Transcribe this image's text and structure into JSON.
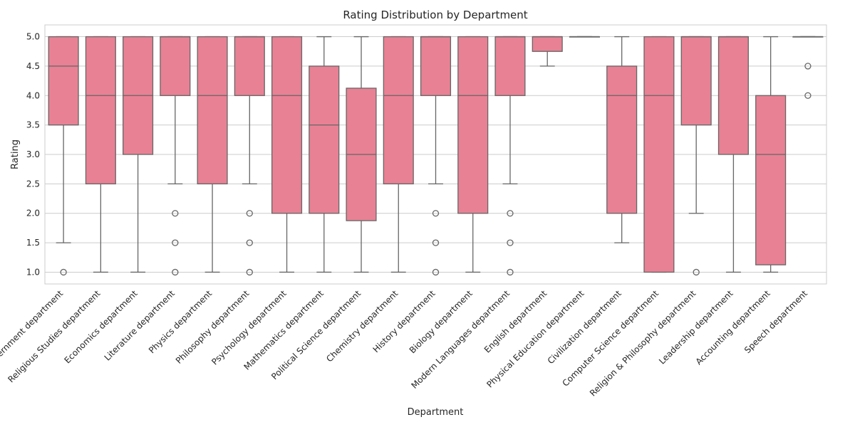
{
  "chart_data": {
    "type": "box",
    "title": "Rating Distribution by Department",
    "xlabel": "Department",
    "ylabel": "Rating",
    "ylim": [
      0.8,
      5.2
    ],
    "yticks": [
      1.0,
      1.5,
      2.0,
      2.5,
      3.0,
      3.5,
      4.0,
      4.5,
      5.0
    ],
    "ytick_labels": [
      "1.0",
      "1.5",
      "2.0",
      "2.5",
      "3.0",
      "3.5",
      "4.0",
      "4.5",
      "5.0"
    ],
    "grid": true,
    "box_color": "#e88194",
    "line_color": "#666666",
    "categories": [
      {
        "name": "Government department",
        "q1": 3.5,
        "median": 4.5,
        "q3": 5.0,
        "whisker_low": 1.5,
        "whisker_high": 5.0,
        "outliers": [
          1.0
        ]
      },
      {
        "name": "Religious Studies department",
        "q1": 2.5,
        "median": 4.0,
        "q3": 5.0,
        "whisker_low": 1.0,
        "whisker_high": 5.0,
        "outliers": []
      },
      {
        "name": "Economics department",
        "q1": 3.0,
        "median": 4.0,
        "q3": 5.0,
        "whisker_low": 1.0,
        "whisker_high": 5.0,
        "outliers": []
      },
      {
        "name": "Literature department",
        "q1": 4.0,
        "median": 5.0,
        "q3": 5.0,
        "whisker_low": 2.5,
        "whisker_high": 5.0,
        "outliers": [
          2.0,
          1.5,
          1.0
        ]
      },
      {
        "name": "Physics department",
        "q1": 2.5,
        "median": 4.0,
        "q3": 5.0,
        "whisker_low": 1.0,
        "whisker_high": 5.0,
        "outliers": []
      },
      {
        "name": "Philosophy department",
        "q1": 4.0,
        "median": 5.0,
        "q3": 5.0,
        "whisker_low": 2.5,
        "whisker_high": 5.0,
        "outliers": [
          2.0,
          1.5,
          1.0
        ]
      },
      {
        "name": "Psychology department",
        "q1": 2.0,
        "median": 4.0,
        "q3": 5.0,
        "whisker_low": 1.0,
        "whisker_high": 5.0,
        "outliers": []
      },
      {
        "name": "Mathematics department",
        "q1": 2.0,
        "median": 3.5,
        "q3": 4.5,
        "whisker_low": 1.0,
        "whisker_high": 5.0,
        "outliers": []
      },
      {
        "name": "Political Science department",
        "q1": 1.875,
        "median": 3.0,
        "q3": 4.125,
        "whisker_low": 1.0,
        "whisker_high": 5.0,
        "outliers": []
      },
      {
        "name": "Chemistry department",
        "q1": 2.5,
        "median": 4.0,
        "q3": 5.0,
        "whisker_low": 1.0,
        "whisker_high": 5.0,
        "outliers": []
      },
      {
        "name": "History department",
        "q1": 4.0,
        "median": 5.0,
        "q3": 5.0,
        "whisker_low": 2.5,
        "whisker_high": 5.0,
        "outliers": [
          2.0,
          1.5,
          1.0
        ]
      },
      {
        "name": "Biology department",
        "q1": 2.0,
        "median": 4.0,
        "q3": 5.0,
        "whisker_low": 1.0,
        "whisker_high": 5.0,
        "outliers": []
      },
      {
        "name": "Modern Languages department",
        "q1": 4.0,
        "median": 5.0,
        "q3": 5.0,
        "whisker_low": 2.5,
        "whisker_high": 5.0,
        "outliers": [
          2.0,
          1.5,
          1.0
        ]
      },
      {
        "name": "English department",
        "q1": 4.75,
        "median": 5.0,
        "q3": 5.0,
        "whisker_low": 4.5,
        "whisker_high": 5.0,
        "outliers": []
      },
      {
        "name": "Physical Education department",
        "q1": 5.0,
        "median": 5.0,
        "q3": 5.0,
        "whisker_low": 5.0,
        "whisker_high": 5.0,
        "outliers": []
      },
      {
        "name": "Civilization department",
        "q1": 2.0,
        "median": 4.0,
        "q3": 4.5,
        "whisker_low": 1.5,
        "whisker_high": 5.0,
        "outliers": []
      },
      {
        "name": "Computer Science department",
        "q1": 1.0,
        "median": 4.0,
        "q3": 5.0,
        "whisker_low": 1.0,
        "whisker_high": 5.0,
        "outliers": []
      },
      {
        "name": "Religion & Philosophy department",
        "q1": 3.5,
        "median": 5.0,
        "q3": 5.0,
        "whisker_low": 2.0,
        "whisker_high": 5.0,
        "outliers": [
          1.0
        ]
      },
      {
        "name": "Leadership department",
        "q1": 3.0,
        "median": 5.0,
        "q3": 5.0,
        "whisker_low": 1.0,
        "whisker_high": 5.0,
        "outliers": []
      },
      {
        "name": "Accounting department",
        "q1": 1.125,
        "median": 3.0,
        "q3": 4.0,
        "whisker_low": 1.0,
        "whisker_high": 5.0,
        "outliers": []
      },
      {
        "name": "Speech department",
        "q1": 5.0,
        "median": 5.0,
        "q3": 5.0,
        "whisker_low": 5.0,
        "whisker_high": 5.0,
        "outliers": [
          4.5,
          4.0
        ]
      }
    ]
  }
}
